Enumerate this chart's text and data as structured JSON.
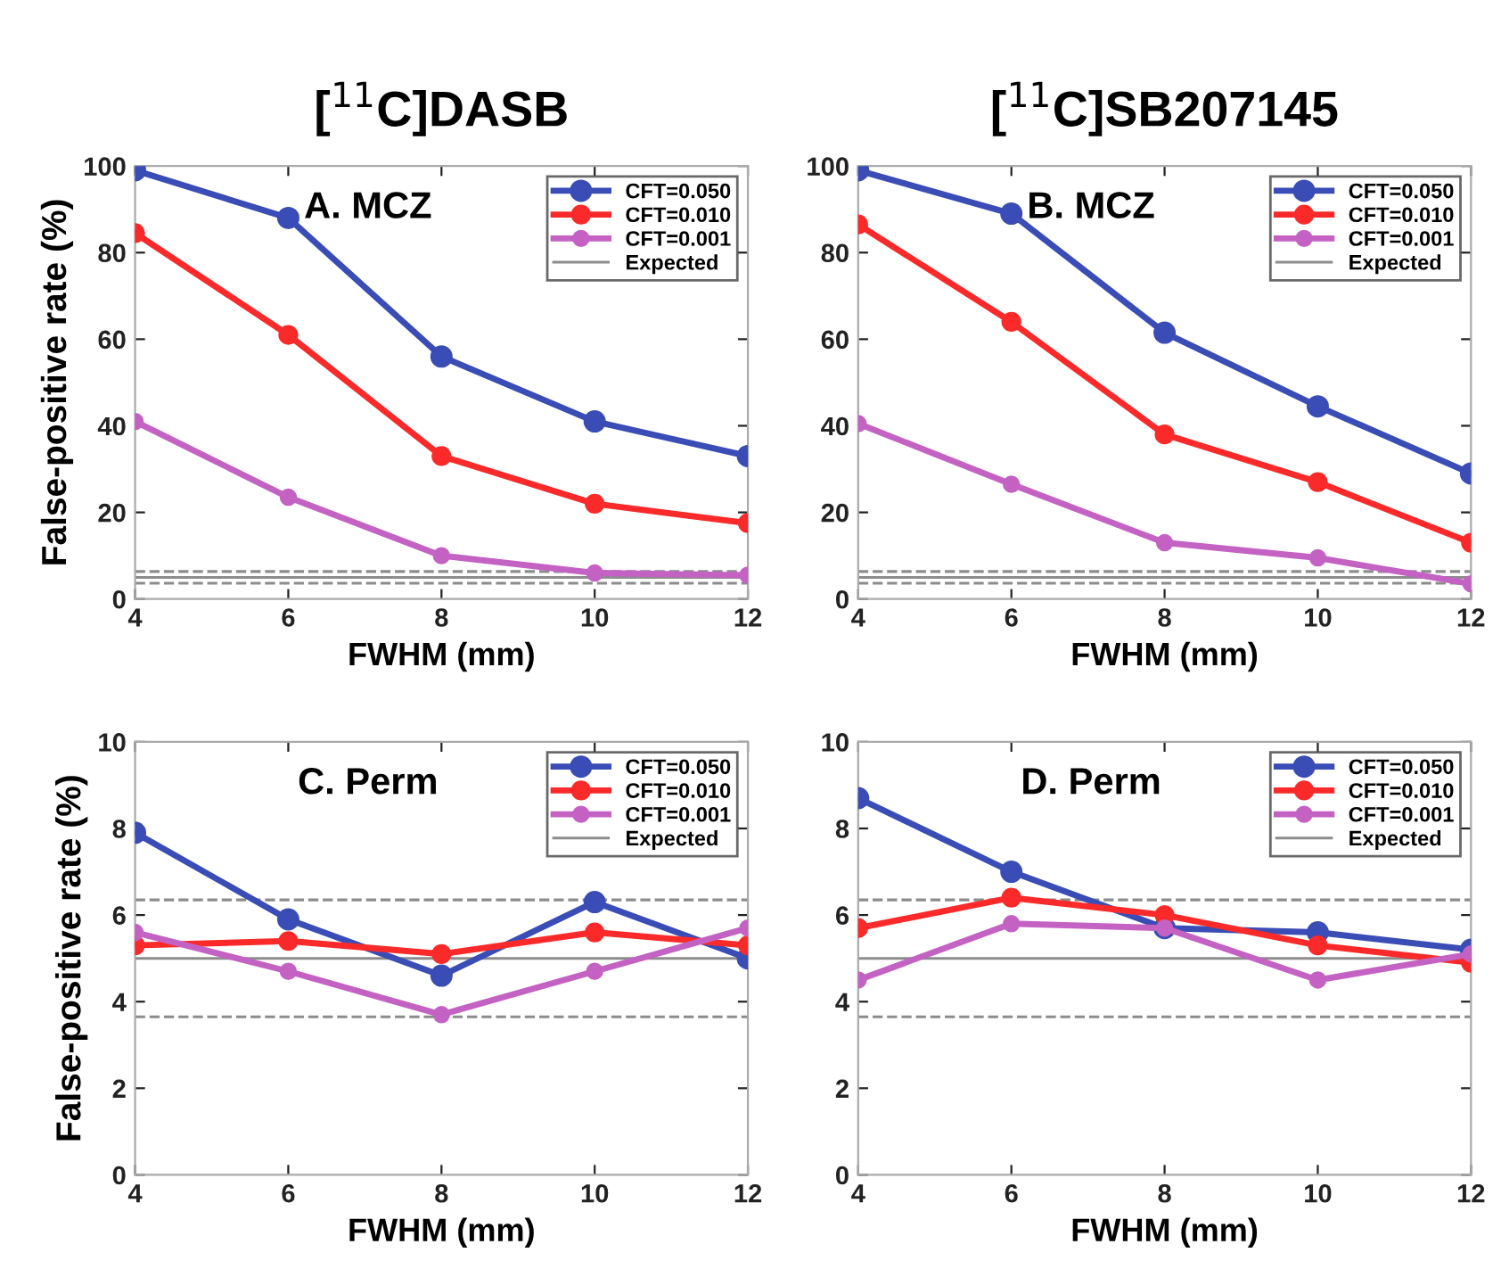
{
  "chart_data": [
    {
      "type": "line",
      "title": "[$^{11}$C]DASB",
      "annotations": [
        "A. MCZ"
      ],
      "xlabel": "FWHM (mm)",
      "ylabel": "False-positive rate (%)",
      "x": [
        4,
        6,
        8,
        10,
        12
      ],
      "xlim": [
        4,
        12
      ],
      "xticks": [
        4,
        6,
        8,
        10,
        12
      ],
      "ylim": [
        0,
        100
      ],
      "yticks": [
        0,
        20,
        40,
        60,
        80,
        100
      ],
      "marker": "circle",
      "line_style": "solid",
      "legend": "top right",
      "grid": false,
      "series": [
        {
          "name": "CFT=0.050",
          "color": "#3a4cb5",
          "values": [
            99,
            88,
            56,
            41,
            33
          ]
        },
        {
          "name": "CFT=0.010",
          "color": "#fa2a2a",
          "values": [
            84.5,
            61,
            33,
            22,
            17.5
          ]
        },
        {
          "name": "CFT=0.001",
          "color": "#c462c4",
          "values": [
            41,
            23.5,
            10,
            6,
            5.5
          ]
        }
      ],
      "ref_lines": [
        {
          "axis": "y",
          "value": 5,
          "label": "Expected",
          "color": "#8c8c8c",
          "line_style": "solid"
        },
        {
          "axis": "y",
          "value": 6.35,
          "label": null,
          "color": "#8c8c8c",
          "line_style": "dashed"
        },
        {
          "axis": "y",
          "value": 3.65,
          "label": null,
          "color": "#8c8c8c",
          "line_style": "dashed"
        }
      ]
    },
    {
      "type": "line",
      "title": "[$^{11}$C]SB207145",
      "annotations": [
        "B. MCZ"
      ],
      "xlabel": "FWHM (mm)",
      "x": [
        4,
        6,
        8,
        10,
        12
      ],
      "xlim": [
        4,
        12
      ],
      "xticks": [
        4,
        6,
        8,
        10,
        12
      ],
      "ylim": [
        0,
        100
      ],
      "yticks": [
        0,
        20,
        40,
        60,
        80,
        100
      ],
      "marker": "circle",
      "line_style": "solid",
      "legend": "top right",
      "grid": false,
      "series": [
        {
          "name": "CFT=0.050",
          "color": "#3a4cb5",
          "values": [
            99,
            89,
            61.5,
            44.5,
            29
          ]
        },
        {
          "name": "CFT=0.010",
          "color": "#fa2a2a",
          "values": [
            86.5,
            64,
            38,
            27,
            13
          ]
        },
        {
          "name": "CFT=0.001",
          "color": "#c462c4",
          "values": [
            40.5,
            26.5,
            13,
            9.5,
            3.5
          ]
        }
      ],
      "ref_lines": [
        {
          "axis": "y",
          "value": 5,
          "label": "Expected",
          "color": "#8c8c8c",
          "line_style": "solid"
        },
        {
          "axis": "y",
          "value": 6.35,
          "label": null,
          "color": "#8c8c8c",
          "line_style": "dashed"
        },
        {
          "axis": "y",
          "value": 3.65,
          "label": null,
          "color": "#8c8c8c",
          "line_style": "dashed"
        }
      ]
    },
    {
      "type": "line",
      "annotations": [
        "C. Perm"
      ],
      "xlabel": "FWHM (mm)",
      "ylabel": "False-positive rate (%)",
      "x": [
        4,
        6,
        8,
        10,
        12
      ],
      "xlim": [
        4,
        12
      ],
      "xticks": [
        4,
        6,
        8,
        10,
        12
      ],
      "ylim": [
        0,
        10
      ],
      "yticks": [
        0,
        2,
        4,
        6,
        8,
        10
      ],
      "marker": "circle",
      "line_style": "solid",
      "legend": "top right",
      "grid": false,
      "series": [
        {
          "name": "CFT=0.050",
          "color": "#3a4cb5",
          "values": [
            7.9,
            5.9,
            4.6,
            6.3,
            5.0
          ]
        },
        {
          "name": "CFT=0.010",
          "color": "#fa2a2a",
          "values": [
            5.3,
            5.4,
            5.1,
            5.6,
            5.3
          ]
        },
        {
          "name": "CFT=0.001",
          "color": "#c462c4",
          "values": [
            5.6,
            4.7,
            3.7,
            4.7,
            5.7
          ]
        }
      ],
      "ref_lines": [
        {
          "axis": "y",
          "value": 5,
          "label": "Expected",
          "color": "#8c8c8c",
          "line_style": "solid"
        },
        {
          "axis": "y",
          "value": 6.35,
          "label": null,
          "color": "#8c8c8c",
          "line_style": "dashed"
        },
        {
          "axis": "y",
          "value": 3.65,
          "label": null,
          "color": "#8c8c8c",
          "line_style": "dashed"
        }
      ]
    },
    {
      "type": "line",
      "annotations": [
        "D. Perm"
      ],
      "xlabel": "FWHM (mm)",
      "x": [
        4,
        6,
        8,
        10,
        12
      ],
      "xlim": [
        4,
        12
      ],
      "xticks": [
        4,
        6,
        8,
        10,
        12
      ],
      "ylim": [
        0,
        10
      ],
      "yticks": [
        0,
        2,
        4,
        6,
        8,
        10
      ],
      "marker": "circle",
      "line_style": "solid",
      "legend": "top right",
      "grid": false,
      "series": [
        {
          "name": "CFT=0.050",
          "color": "#3a4cb5",
          "values": [
            8.7,
            7.0,
            5.7,
            5.6,
            5.2
          ]
        },
        {
          "name": "CFT=0.010",
          "color": "#fa2a2a",
          "values": [
            5.7,
            6.4,
            6.0,
            5.3,
            4.9
          ]
        },
        {
          "name": "CFT=0.001",
          "color": "#c462c4",
          "values": [
            4.5,
            5.8,
            5.7,
            4.5,
            5.1
          ]
        }
      ],
      "ref_lines": [
        {
          "axis": "y",
          "value": 5,
          "label": "Expected",
          "color": "#8c8c8c",
          "line_style": "solid"
        },
        {
          "axis": "y",
          "value": 6.35,
          "label": null,
          "color": "#8c8c8c",
          "line_style": "dashed"
        },
        {
          "axis": "y",
          "value": 3.65,
          "label": null,
          "color": "#8c8c8c",
          "line_style": "dashed"
        }
      ]
    }
  ]
}
